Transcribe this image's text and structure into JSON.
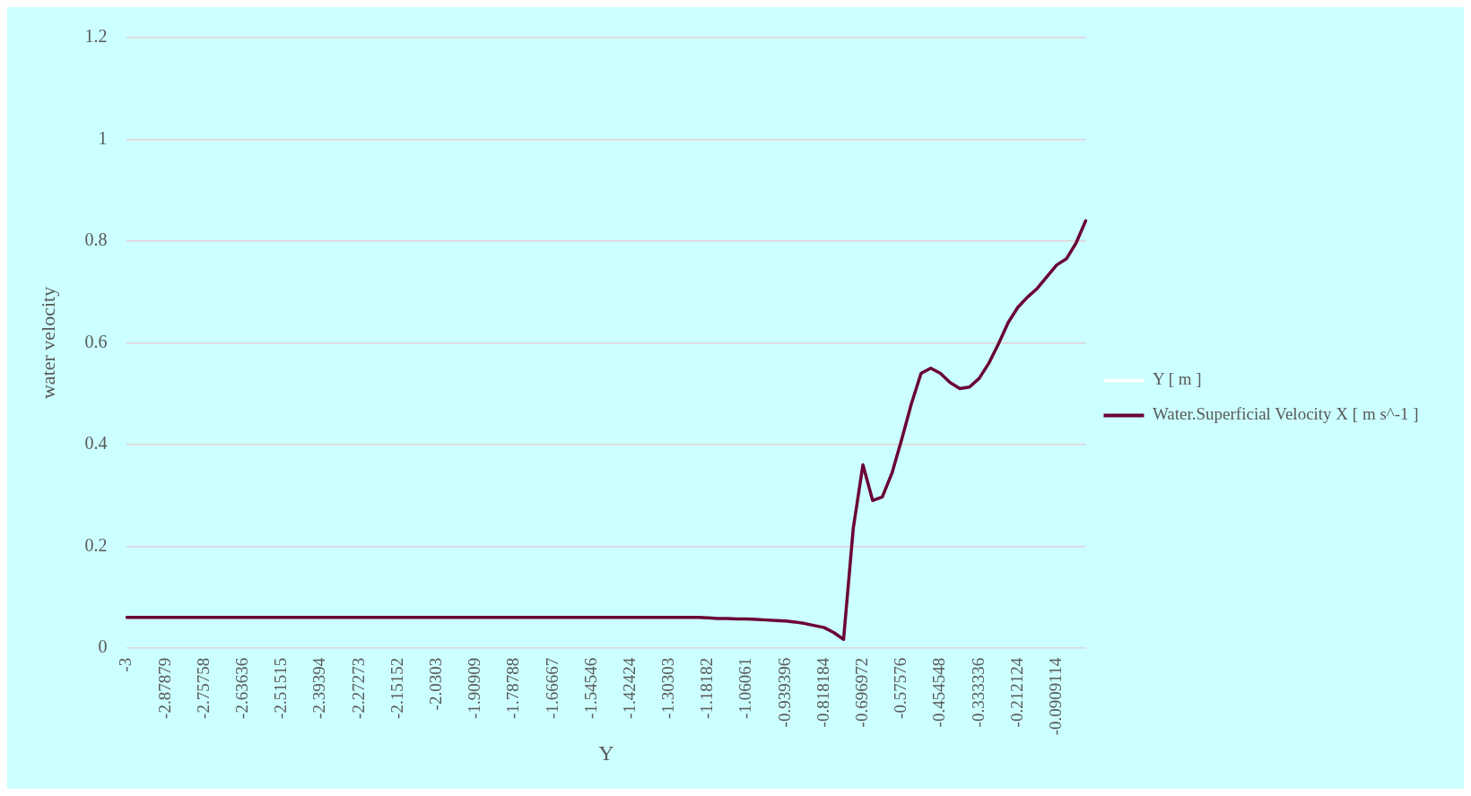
{
  "chart_data": {
    "type": "line",
    "xlabel": "Y",
    "ylabel": "water velocity",
    "categories": [
      "-3",
      null,
      null,
      null,
      "-2.87879",
      null,
      null,
      null,
      "-2.75758",
      null,
      null,
      null,
      "-2.63636",
      null,
      null,
      null,
      "-2.51515",
      null,
      null,
      null,
      "-2.39394",
      null,
      null,
      null,
      "-2.27273",
      null,
      null,
      null,
      "-2.15152",
      null,
      null,
      null,
      "-2.0303",
      null,
      null,
      null,
      "-1.90909",
      null,
      null,
      null,
      "-1.78788",
      null,
      null,
      null,
      "-1.66667",
      null,
      null,
      null,
      "-1.54546",
      null,
      null,
      null,
      "-1.42424",
      null,
      null,
      null,
      "-1.30303",
      null,
      null,
      null,
      "-1.18182",
      null,
      null,
      null,
      "-1.06061",
      null,
      null,
      null,
      "-0.939396",
      null,
      null,
      null,
      "-0.818184",
      null,
      null,
      null,
      "-0.696972",
      null,
      null,
      null,
      "-0.57576",
      null,
      null,
      null,
      "-0.454548",
      null,
      null,
      null,
      "-0.333336",
      null,
      null,
      null,
      "-0.212124",
      null,
      null,
      null,
      "-0.0909114",
      null,
      null,
      null
    ],
    "series": [
      {
        "name": "Y [ m ]",
        "color": "#ffffff",
        "values": [
          null,
          null,
          null,
          null,
          null,
          null,
          null,
          null,
          null,
          null,
          null,
          null,
          null,
          null,
          null,
          null,
          null,
          null,
          null,
          null,
          null,
          null,
          null,
          null,
          null,
          null,
          null,
          null,
          null,
          null,
          null,
          null,
          null,
          null,
          null,
          null,
          null,
          null,
          null,
          null,
          null,
          null,
          null,
          null,
          null,
          null,
          null,
          null,
          null,
          null,
          null,
          null,
          null,
          null,
          null,
          null,
          null,
          null,
          null,
          null,
          null,
          null,
          null,
          null,
          null,
          null,
          null,
          null,
          null,
          null,
          null,
          null,
          null,
          null,
          null,
          null,
          null,
          null,
          null,
          null,
          null,
          null,
          null,
          null,
          null,
          null,
          null,
          null,
          null,
          null,
          null,
          null,
          null,
          null,
          null,
          null,
          null,
          null,
          null,
          null
        ]
      },
      {
        "name": "Water.Superficial Velocity X [ m s^-1 ]",
        "color": "#6b0033",
        "values": [
          0.06,
          0.06,
          0.06,
          0.06,
          0.06,
          0.06,
          0.06,
          0.06,
          0.06,
          0.06,
          0.06,
          0.06,
          0.06,
          0.06,
          0.06,
          0.06,
          0.06,
          0.06,
          0.06,
          0.06,
          0.06,
          0.06,
          0.06,
          0.06,
          0.06,
          0.06,
          0.06,
          0.06,
          0.06,
          0.06,
          0.06,
          0.06,
          0.06,
          0.06,
          0.06,
          0.06,
          0.06,
          0.06,
          0.06,
          0.06,
          0.06,
          0.06,
          0.06,
          0.06,
          0.06,
          0.06,
          0.06,
          0.06,
          0.06,
          0.06,
          0.06,
          0.06,
          0.06,
          0.06,
          0.06,
          0.06,
          0.06,
          0.06,
          0.06,
          0.06,
          0.059,
          0.058,
          0.058,
          0.057,
          0.057,
          0.056,
          0.055,
          0.054,
          0.053,
          0.051,
          0.048,
          0.044,
          0.04,
          0.03,
          0.017,
          0.235,
          0.36,
          0.29,
          0.297,
          0.344,
          0.41,
          0.48,
          0.54,
          0.55,
          0.54,
          0.522,
          0.51,
          0.513,
          0.53,
          0.56,
          0.598,
          0.64,
          0.67,
          0.69,
          0.707,
          0.73,
          0.753,
          0.765,
          0.796,
          0.84
        ]
      }
    ],
    "ylim": [
      0,
      1.2
    ],
    "yticks": [
      0,
      0.2,
      0.4,
      0.6,
      0.8,
      1,
      1.2
    ],
    "grid": "y",
    "legend": "right",
    "marker": "none",
    "line_style": "solid"
  }
}
